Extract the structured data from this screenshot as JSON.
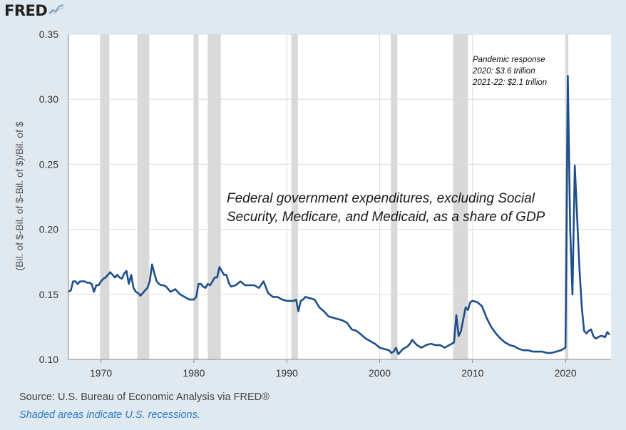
{
  "logo": {
    "text": "FRED",
    "icon": "chart-line-icon"
  },
  "source_text": "Source: U.S. Bureau of Economic Analysis via FRED®",
  "note_text": "Shaded areas indicate U.S. recessions.",
  "annotations": {
    "description": "Federal government expenditures, excluding Social Security, Medicare, and Medicaid, as a share of GDP",
    "pandemic_lines": [
      "Pandemic response",
      "2020: $3.6 trillion",
      "2021-22: $2.1 trillion"
    ]
  },
  "colors": {
    "line": "#1f4e8c",
    "plot_bg": "#ffffff",
    "page_bg": "#e1e9f0",
    "recession": "#d9d9d9",
    "note": "#2a7bc6"
  },
  "chart_data": {
    "type": "line",
    "ylabel": "(Bil. of $-Bil. of $-Bil. of $)/Bil. of $",
    "xlim": [
      1966.5,
      2024.9
    ],
    "ylim": [
      0.1,
      0.35
    ],
    "yticks": [
      "0.10",
      "0.15",
      "0.20",
      "0.25",
      "0.30",
      "0.35"
    ],
    "xticks": [
      "1970",
      "1980",
      "1990",
      "2000",
      "2010",
      "2020"
    ],
    "grid": true,
    "recessions": [
      [
        1969.9,
        1970.9
      ],
      [
        1973.9,
        1975.2
      ],
      [
        1980.0,
        1980.5
      ],
      [
        1981.5,
        1982.9
      ],
      [
        1990.5,
        1991.2
      ],
      [
        2001.2,
        2001.9
      ],
      [
        2007.9,
        2009.5
      ],
      [
        2020.0,
        2020.3
      ]
    ],
    "series": [
      {
        "x": [
          1966.5,
          1966.75,
          1967.0,
          1967.25,
          1967.5,
          1967.75,
          1968.0,
          1968.25,
          1968.5,
          1968.75,
          1969.0,
          1969.25,
          1969.5,
          1969.75,
          1970.0,
          1970.25,
          1970.5,
          1970.75,
          1971.0,
          1971.25,
          1971.5,
          1971.75,
          1972.0,
          1972.25,
          1972.5,
          1972.75,
          1973.0,
          1973.25,
          1973.5,
          1973.75,
          1974.0,
          1974.25,
          1974.5,
          1974.75,
          1975.0,
          1975.25,
          1975.5,
          1975.75,
          1976.0,
          1976.25,
          1976.5,
          1976.75,
          1977.0,
          1977.5,
          1978.0,
          1978.5,
          1979.0,
          1979.5,
          1980.0,
          1980.25,
          1980.5,
          1980.75,
          1981.0,
          1981.25,
          1981.5,
          1981.75,
          1982.0,
          1982.25,
          1982.5,
          1982.75,
          1983.0,
          1983.25,
          1983.5,
          1983.75,
          1984.0,
          1984.5,
          1985.0,
          1985.5,
          1986.0,
          1986.5,
          1987.0,
          1987.5,
          1988.0,
          1988.5,
          1989.0,
          1989.5,
          1990.0,
          1990.5,
          1990.75,
          1991.0,
          1991.25,
          1991.5,
          1991.75,
          1992.0,
          1992.5,
          1993.0,
          1993.5,
          1994.0,
          1994.5,
          1995.0,
          1995.5,
          1996.0,
          1996.5,
          1997.0,
          1997.5,
          1998.0,
          1998.5,
          1999.0,
          1999.5,
          2000.0,
          2000.5,
          2001.0,
          2001.25,
          2001.5,
          2001.75,
          2002.0,
          2002.5,
          2003.0,
          2003.25,
          2003.5,
          2003.75,
          2004.0,
          2004.5,
          2005.0,
          2005.5,
          2006.0,
          2006.5,
          2007.0,
          2007.5,
          2008.0,
          2008.25,
          2008.5,
          2008.75,
          2009.0,
          2009.25,
          2009.5,
          2009.75,
          2010.0,
          2010.5,
          2011.0,
          2011.5,
          2012.0,
          2012.5,
          2013.0,
          2013.5,
          2014.0,
          2014.5,
          2015.0,
          2015.5,
          2016.0,
          2016.5,
          2017.0,
          2017.5,
          2018.0,
          2018.5,
          2019.0,
          2019.5,
          2019.75,
          2020.0,
          2020.25,
          2020.5,
          2020.75,
          2021.0,
          2021.25,
          2021.5,
          2021.75,
          2022.0,
          2022.25,
          2022.5,
          2022.75,
          2023.0,
          2023.25,
          2023.5,
          2023.75,
          2024.0,
          2024.25,
          2024.5,
          2024.75
        ],
        "y": [
          0.152,
          0.153,
          0.16,
          0.16,
          0.158,
          0.16,
          0.16,
          0.16,
          0.159,
          0.159,
          0.158,
          0.152,
          0.157,
          0.157,
          0.16,
          0.162,
          0.163,
          0.165,
          0.167,
          0.165,
          0.163,
          0.165,
          0.163,
          0.162,
          0.166,
          0.168,
          0.158,
          0.165,
          0.155,
          0.152,
          0.151,
          0.149,
          0.151,
          0.153,
          0.155,
          0.16,
          0.173,
          0.166,
          0.16,
          0.158,
          0.157,
          0.157,
          0.156,
          0.152,
          0.154,
          0.15,
          0.148,
          0.146,
          0.146,
          0.148,
          0.158,
          0.158,
          0.156,
          0.155,
          0.158,
          0.157,
          0.16,
          0.163,
          0.163,
          0.171,
          0.168,
          0.165,
          0.165,
          0.159,
          0.156,
          0.157,
          0.16,
          0.157,
          0.157,
          0.157,
          0.155,
          0.16,
          0.151,
          0.148,
          0.148,
          0.146,
          0.145,
          0.145,
          0.145,
          0.146,
          0.137,
          0.145,
          0.146,
          0.148,
          0.147,
          0.146,
          0.14,
          0.137,
          0.133,
          0.132,
          0.131,
          0.13,
          0.128,
          0.123,
          0.122,
          0.119,
          0.116,
          0.114,
          0.112,
          0.109,
          0.108,
          0.107,
          0.105,
          0.106,
          0.109,
          0.104,
          0.108,
          0.11,
          0.112,
          0.115,
          0.113,
          0.111,
          0.109,
          0.111,
          0.112,
          0.111,
          0.111,
          0.109,
          0.111,
          0.113,
          0.134,
          0.118,
          0.122,
          0.131,
          0.14,
          0.138,
          0.144,
          0.145,
          0.144,
          0.141,
          0.132,
          0.125,
          0.12,
          0.116,
          0.113,
          0.111,
          0.11,
          0.108,
          0.107,
          0.107,
          0.106,
          0.106,
          0.106,
          0.105,
          0.105,
          0.106,
          0.107,
          0.108,
          0.109,
          0.318,
          0.2,
          0.15,
          0.249,
          0.21,
          0.17,
          0.14,
          0.122,
          0.12,
          0.122,
          0.123,
          0.118,
          0.116,
          0.117,
          0.118,
          0.118,
          0.117,
          0.121,
          0.119
        ]
      }
    ]
  }
}
